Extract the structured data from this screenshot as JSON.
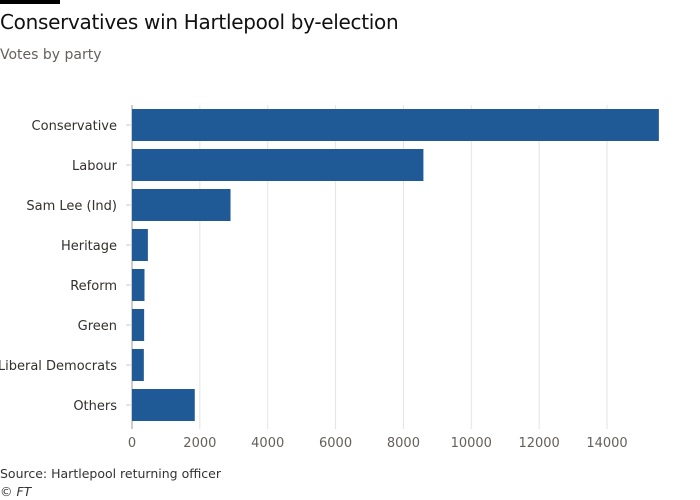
{
  "title": "Conservatives win Hartlepool by-election",
  "subtitle": "Votes by party",
  "source": "Source: Hartlepool returning officer",
  "credit": "© FT",
  "chart_data": {
    "type": "bar",
    "orientation": "horizontal",
    "categories": [
      "Conservative",
      "Labour",
      "Sam Lee (Ind)",
      "Heritage",
      "Reform",
      "Green",
      "Liberal Democrats",
      "Others"
    ],
    "values": [
      15529,
      8589,
      2904,
      468,
      368,
      358,
      349,
      1850
    ],
    "xlim": [
      0,
      15600
    ],
    "xticks": [
      0,
      2000,
      4000,
      6000,
      8000,
      10000,
      12000,
      14000
    ],
    "grid": true,
    "bar_color": "#1f5a96"
  }
}
